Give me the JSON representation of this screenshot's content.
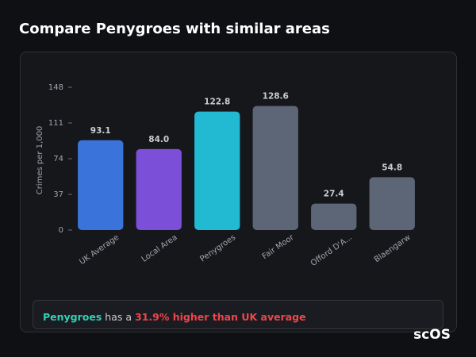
{
  "chart_data": {
    "type": "bar",
    "title": "Compare Penygroes with similar areas",
    "y_label": "Crimes per 1,000",
    "categories": [
      "UK Average",
      "Local Area",
      "Penygroes",
      "Fair Moor",
      "Offord D'A...",
      "Blaengarw"
    ],
    "values": [
      93.1,
      84.0,
      122.8,
      128.6,
      27.4,
      54.8
    ],
    "value_labels": [
      "93.1",
      "84.0",
      "122.8",
      "128.6",
      "27.4",
      "54.8"
    ],
    "colors": [
      "#3a74db",
      "#7b4fd8",
      "#22b9d2",
      "#5c6677",
      "#5c6677",
      "#5c6677"
    ],
    "ylim": [
      0,
      148
    ],
    "yticks": [
      0,
      37,
      74,
      111,
      148
    ],
    "note": {
      "place": "Penygroes",
      "middle": "has a",
      "highlight": "31.9% higher than UK average"
    },
    "logo": "scOS"
  }
}
